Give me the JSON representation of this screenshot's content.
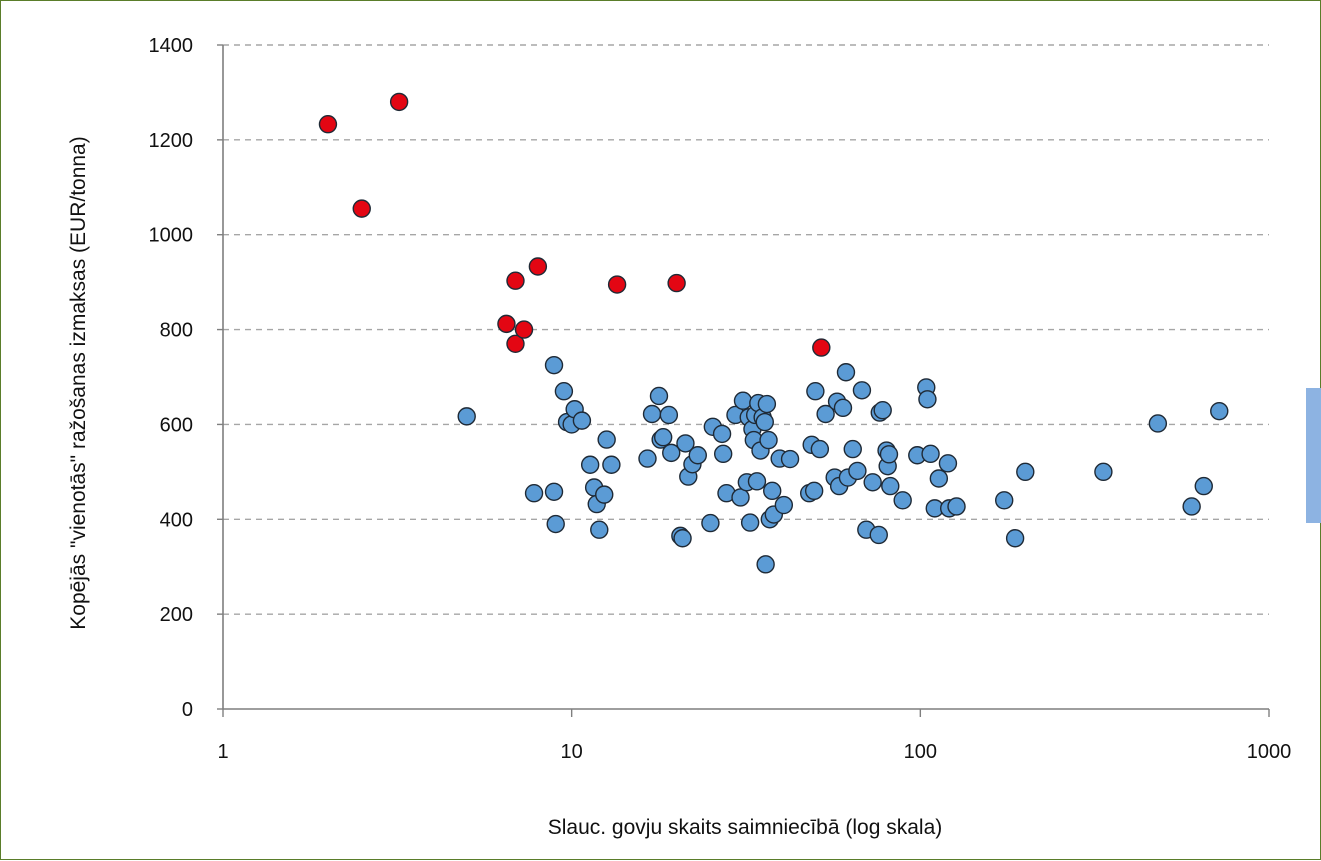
{
  "chart_data": {
    "type": "scatter",
    "xlabel": "Slauc. govju skaits saimniecībā (log skala)",
    "ylabel": "Kopējās \"vienotās\" ražošanas izmaksas (EUR/tonna)",
    "x_scale": "log",
    "xlim": [
      1,
      1000
    ],
    "ylim": [
      0,
      1400
    ],
    "x_ticks": [
      1,
      10,
      100,
      1000
    ],
    "x_tick_labels": [
      "1",
      "10",
      "100",
      "1000"
    ],
    "y_ticks": [
      0,
      200,
      400,
      600,
      800,
      1000,
      1200,
      1400
    ],
    "y_tick_labels": [
      "0",
      "200",
      "400",
      "600",
      "800",
      "1000",
      "1200",
      "1400"
    ],
    "grid": "horizontal dashed",
    "legend": "none",
    "colors": {
      "red_series": "#e30613",
      "blue_series": "#5b9bd5",
      "frame": "#5a7d2a",
      "side_tab": "#8db3e2"
    },
    "series": [
      {
        "color": "#e30613",
        "points": [
          [
            2.0,
            1233
          ],
          [
            2.5,
            1055
          ],
          [
            3.2,
            1280
          ],
          [
            6.5,
            812
          ],
          [
            6.9,
            903
          ],
          [
            6.9,
            770
          ],
          [
            7.3,
            800
          ],
          [
            8.0,
            933
          ],
          [
            13.5,
            895
          ],
          [
            20.0,
            898
          ],
          [
            52.0,
            762
          ]
        ]
      },
      {
        "color": "#5b9bd5",
        "points": [
          [
            5.0,
            617
          ],
          [
            7.8,
            455
          ],
          [
            8.9,
            458
          ],
          [
            8.9,
            725
          ],
          [
            9.0,
            390
          ],
          [
            9.5,
            670
          ],
          [
            9.7,
            605
          ],
          [
            10.0,
            600
          ],
          [
            10.2,
            632
          ],
          [
            10.7,
            608
          ],
          [
            11.3,
            515
          ],
          [
            11.6,
            467
          ],
          [
            11.8,
            432
          ],
          [
            12.0,
            378
          ],
          [
            12.4,
            452
          ],
          [
            12.6,
            568
          ],
          [
            13.0,
            515
          ],
          [
            16.5,
            528
          ],
          [
            17.0,
            622
          ],
          [
            17.8,
            660
          ],
          [
            18.0,
            568
          ],
          [
            18.3,
            573
          ],
          [
            19.0,
            620
          ],
          [
            19.3,
            540
          ],
          [
            20.5,
            365
          ],
          [
            20.8,
            360
          ],
          [
            21.2,
            560
          ],
          [
            21.6,
            490
          ],
          [
            22.2,
            516
          ],
          [
            23.0,
            535
          ],
          [
            25.0,
            392
          ],
          [
            25.4,
            595
          ],
          [
            27.0,
            580
          ],
          [
            27.2,
            538
          ],
          [
            27.8,
            455
          ],
          [
            29.5,
            620
          ],
          [
            30.5,
            446
          ],
          [
            31.0,
            650
          ],
          [
            31.8,
            478
          ],
          [
            32.2,
            615
          ],
          [
            32.5,
            393
          ],
          [
            33.0,
            590
          ],
          [
            33.3,
            567
          ],
          [
            33.6,
            620
          ],
          [
            34.0,
            480
          ],
          [
            34.3,
            645
          ],
          [
            34.8,
            545
          ],
          [
            35.3,
            615
          ],
          [
            35.8,
            605
          ],
          [
            36.0,
            305
          ],
          [
            36.3,
            643
          ],
          [
            36.7,
            567
          ],
          [
            37.0,
            400
          ],
          [
            37.6,
            460
          ],
          [
            38.0,
            410
          ],
          [
            39.5,
            528
          ],
          [
            40.6,
            430
          ],
          [
            42.3,
            527
          ],
          [
            48.0,
            455
          ],
          [
            48.8,
            557
          ],
          [
            49.6,
            460
          ],
          [
            50.0,
            670
          ],
          [
            51.5,
            548
          ],
          [
            53.5,
            622
          ],
          [
            56.8,
            488
          ],
          [
            57.7,
            648
          ],
          [
            58.5,
            470
          ],
          [
            60.0,
            635
          ],
          [
            61.2,
            710
          ],
          [
            62.0,
            488
          ],
          [
            64.0,
            548
          ],
          [
            66.0,
            502
          ],
          [
            68.0,
            672
          ],
          [
            70.0,
            378
          ],
          [
            73.0,
            478
          ],
          [
            76.0,
            367
          ],
          [
            76.5,
            625
          ],
          [
            78.0,
            630
          ],
          [
            80.0,
            545
          ],
          [
            80.6,
            512
          ],
          [
            81.3,
            537
          ],
          [
            82.0,
            470
          ],
          [
            89.0,
            440
          ],
          [
            98.0,
            535
          ],
          [
            104.0,
            678
          ],
          [
            104.8,
            653
          ],
          [
            107.0,
            538
          ],
          [
            110.0,
            423
          ],
          [
            113.0,
            486
          ],
          [
            120.0,
            518
          ],
          [
            121.0,
            423
          ],
          [
            127.0,
            427
          ],
          [
            174.0,
            440
          ],
          [
            187.0,
            360
          ],
          [
            200.0,
            500
          ],
          [
            335.0,
            500
          ],
          [
            480.0,
            602
          ],
          [
            600.0,
            427
          ],
          [
            650.0,
            470
          ],
          [
            720.0,
            628
          ]
        ]
      }
    ]
  }
}
